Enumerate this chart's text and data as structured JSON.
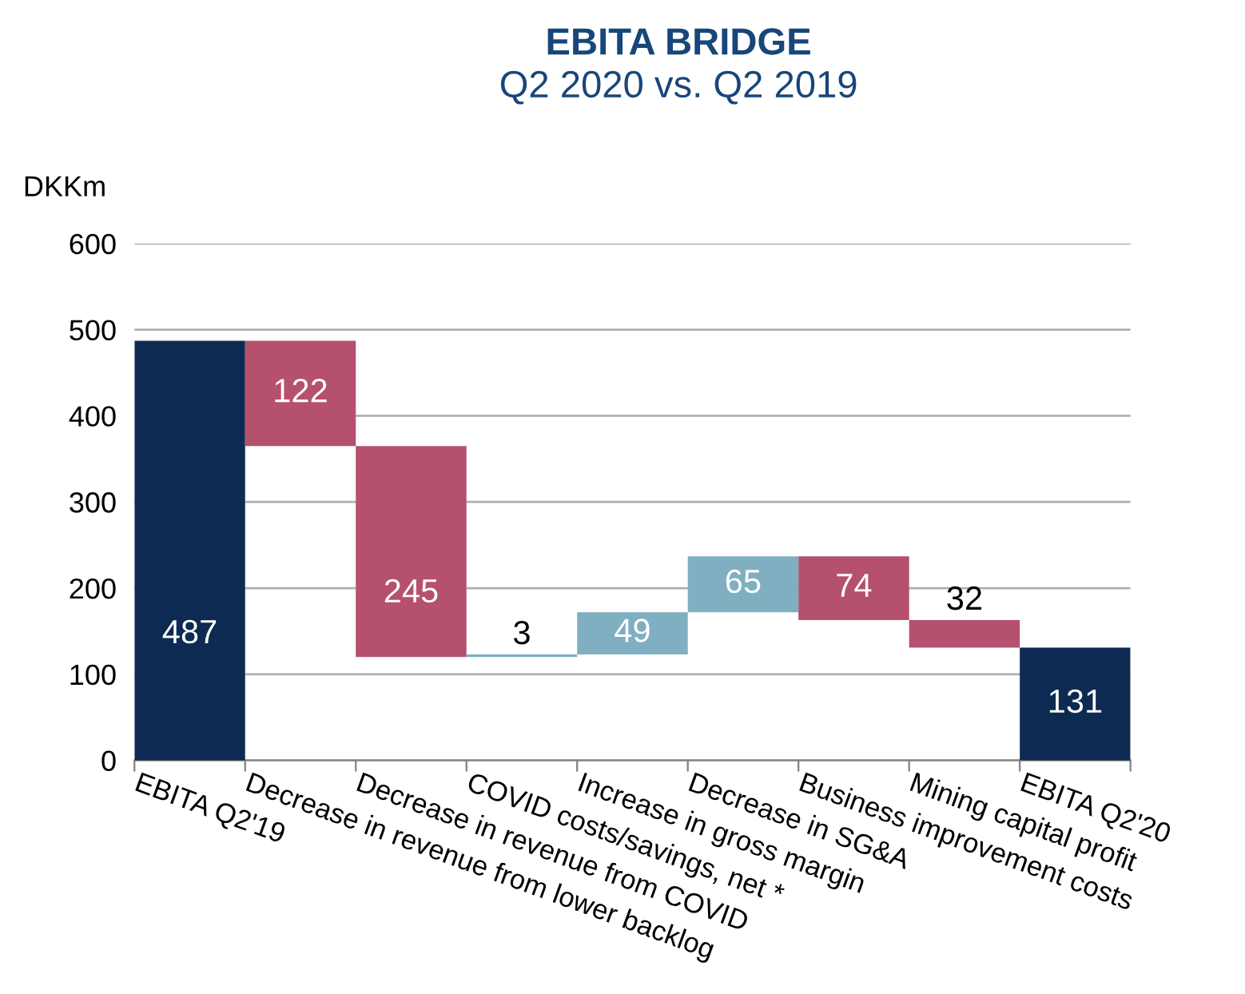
{
  "chart_data": {
    "type": "bar",
    "title": "EBITA BRIDGE",
    "subtitle": "Q2 2020 vs. Q2 2019",
    "ylabel": "DKKm",
    "categories": [
      "EBITA Q2'19",
      "Decrease in revenue from lower backlog",
      "Decrease in revenue from COVID",
      "COVID costs/savings, net *",
      "Increase in gross margin",
      "Decrease in SG&A",
      "Business improvement costs",
      "Mining capital profit",
      "EBITA Q2'20"
    ],
    "values": [
      487,
      122,
      245,
      3,
      49,
      65,
      74,
      32,
      131
    ],
    "base": [
      0,
      365,
      120,
      120,
      123,
      172,
      163,
      131,
      0
    ],
    "colors": [
      "#0d2b52",
      "#b5506f",
      "#b5506f",
      "#7fafc0",
      "#7fafc0",
      "#7fafc0",
      "#b5506f",
      "#b5506f",
      "#0d2b52"
    ],
    "ylim": [
      0,
      600
    ],
    "yticks": [
      0,
      100,
      200,
      300,
      400,
      500,
      600
    ],
    "grid": "y",
    "data_labels": true
  }
}
